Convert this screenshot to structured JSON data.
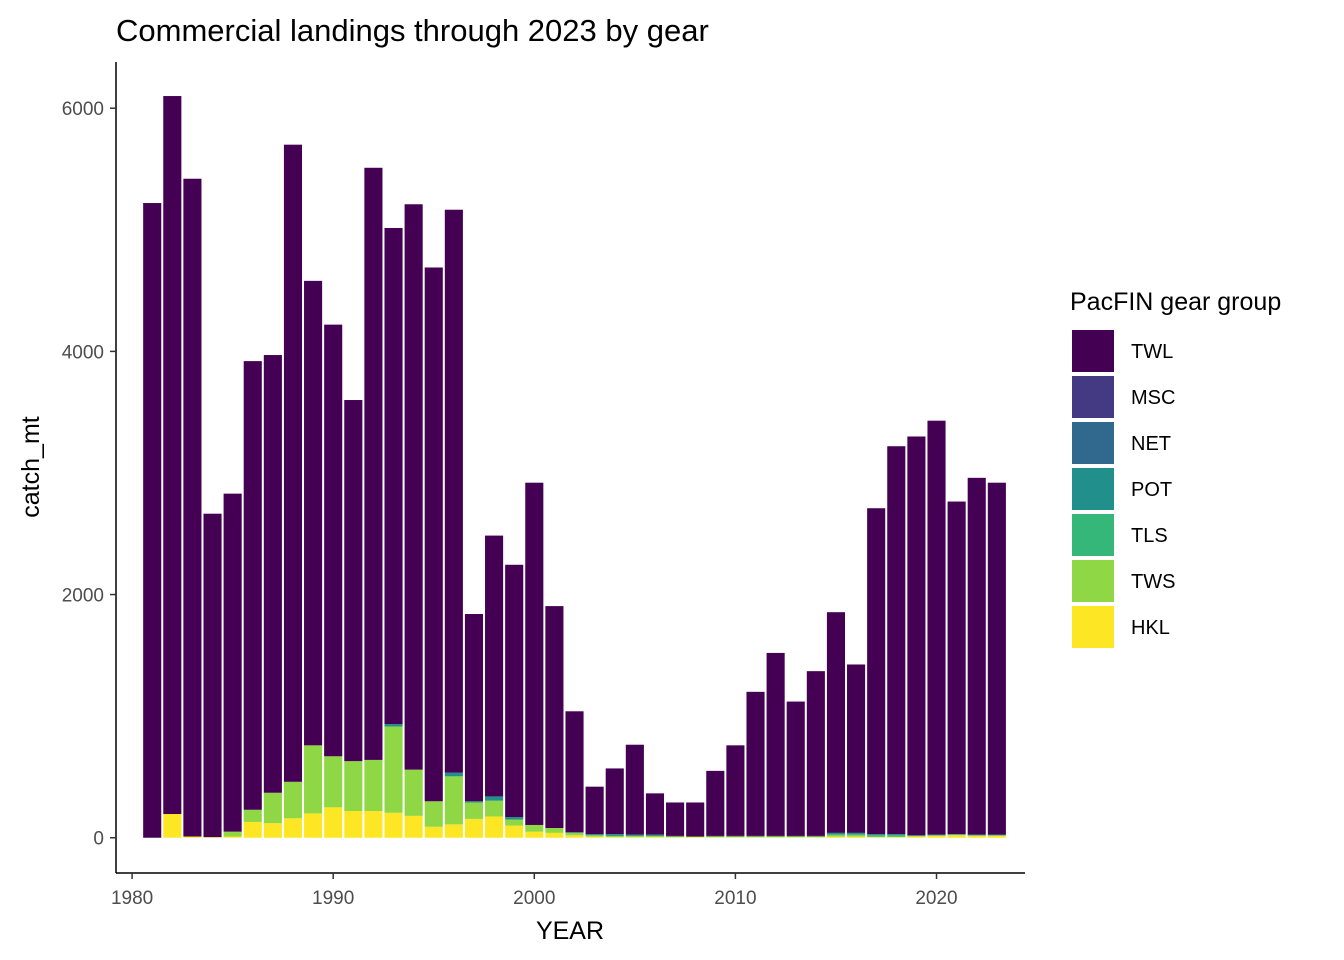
{
  "chart_data": {
    "type": "bar",
    "stacked": true,
    "title": "Commercial landings through 2023 by gear",
    "xlabel": "YEAR",
    "ylabel": "catch_mt",
    "xlim": [
      1979.2,
      2024.4
    ],
    "ylim": [
      -290,
      6380
    ],
    "xticks": [
      1980,
      1990,
      2000,
      2010,
      2020
    ],
    "yticks": [
      0,
      2000,
      4000,
      6000
    ],
    "grid": false,
    "legend": {
      "title": "PacFIN gear group",
      "position": "right",
      "entries": [
        "TWL",
        "MSC",
        "NET",
        "POT",
        "TLS",
        "TWS",
        "HKL"
      ]
    },
    "colors": {
      "TWL": "#440154",
      "MSC": "#443A83",
      "NET": "#31688E",
      "POT": "#21908C",
      "TLS": "#35B779",
      "TWS": "#8FD744",
      "HKL": "#FDE725"
    },
    "x": [
      1981,
      1982,
      1983,
      1984,
      1985,
      1986,
      1987,
      1988,
      1989,
      1990,
      1991,
      1992,
      1993,
      1994,
      1995,
      1996,
      1997,
      1998,
      1999,
      2000,
      2001,
      2002,
      2003,
      2004,
      2005,
      2006,
      2007,
      2008,
      2009,
      2010,
      2011,
      2012,
      2013,
      2014,
      2015,
      2016,
      2017,
      2018,
      2019,
      2020,
      2021,
      2022,
      2023
    ],
    "series": [
      {
        "name": "HKL",
        "values": [
          0,
          195,
          10,
          5,
          10,
          130,
          120,
          160,
          200,
          250,
          220,
          220,
          205,
          180,
          90,
          110,
          155,
          175,
          100,
          50,
          40,
          20,
          10,
          5,
          5,
          5,
          5,
          5,
          5,
          5,
          5,
          5,
          5,
          5,
          10,
          10,
          5,
          5,
          10,
          15,
          20,
          15,
          15
        ]
      },
      {
        "name": "TWS",
        "values": [
          0,
          0,
          0,
          0,
          40,
          100,
          250,
          300,
          560,
          420,
          410,
          420,
          710,
          380,
          210,
          395,
          135,
          130,
          50,
          55,
          40,
          20,
          10,
          10,
          10,
          10,
          5,
          5,
          5,
          5,
          5,
          5,
          5,
          5,
          10,
          10,
          5,
          5,
          5,
          5,
          5,
          5,
          5
        ]
      },
      {
        "name": "TLS",
        "values": [
          0,
          0,
          0,
          0,
          0,
          0,
          0,
          0,
          0,
          0,
          0,
          0,
          0,
          0,
          0,
          0,
          0,
          0,
          0,
          0,
          0,
          0,
          0,
          0,
          0,
          0,
          0,
          0,
          0,
          0,
          0,
          0,
          0,
          0,
          10,
          10,
          10,
          10,
          0,
          0,
          0,
          0,
          0
        ]
      },
      {
        "name": "POT",
        "values": [
          0,
          0,
          0,
          0,
          0,
          0,
          0,
          0,
          0,
          0,
          0,
          0,
          20,
          0,
          0,
          30,
          10,
          35,
          20,
          0,
          0,
          5,
          10,
          15,
          10,
          10,
          5,
          0,
          5,
          5,
          5,
          5,
          5,
          5,
          10,
          10,
          10,
          10,
          5,
          5,
          5,
          5,
          5
        ]
      },
      {
        "name": "NET",
        "values": [
          0,
          0,
          0,
          0,
          0,
          0,
          0,
          0,
          0,
          0,
          0,
          0,
          0,
          0,
          0,
          0,
          0,
          0,
          0,
          0,
          0,
          0,
          0,
          0,
          0,
          0,
          0,
          0,
          0,
          0,
          0,
          0,
          0,
          0,
          0,
          0,
          0,
          0,
          0,
          0,
          0,
          0,
          0
        ]
      },
      {
        "name": "MSC",
        "values": [
          0,
          0,
          0,
          0,
          0,
          0,
          0,
          0,
          0,
          0,
          0,
          0,
          0,
          0,
          0,
          0,
          0,
          0,
          0,
          0,
          0,
          0,
          0,
          0,
          0,
          0,
          0,
          0,
          0,
          0,
          0,
          0,
          0,
          0,
          0,
          0,
          0,
          0,
          0,
          0,
          0,
          0,
          0
        ]
      },
      {
        "name": "TWL",
        "values": [
          5220,
          5905,
          5410,
          2660,
          2780,
          3690,
          3600,
          5240,
          3820,
          3550,
          2970,
          4870,
          4080,
          4650,
          4390,
          4630,
          1540,
          2145,
          2075,
          2815,
          1825,
          995,
          390,
          540,
          740,
          340,
          275,
          280,
          535,
          745,
          1185,
          1505,
          1105,
          1355,
          1815,
          1385,
          2680,
          3190,
          3280,
          3405,
          2735,
          2935,
          2895
        ]
      }
    ]
  }
}
